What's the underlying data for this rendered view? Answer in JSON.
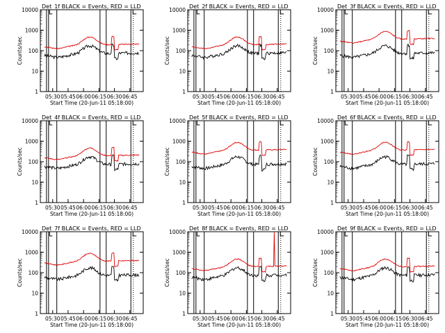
{
  "figure": {
    "ylabel": "Counts/sec",
    "xlabel": "Start Time (20-Jun-11 05:18:00)"
  },
  "axes": {
    "y_ticks": [
      {
        "v": 1,
        "label": "1"
      },
      {
        "v": 10,
        "label": "10"
      },
      {
        "v": 100,
        "label": "100"
      },
      {
        "v": 1000,
        "label": "1000"
      },
      {
        "v": 10000,
        "label": "10000"
      }
    ],
    "x_ticks": [
      "05:30",
      "05:45",
      "06:00",
      "06:15",
      "06:30",
      "06:45"
    ]
  },
  "colors": {
    "events": "#000000",
    "lld": "#e00000"
  },
  "chart_data": [
    {
      "type": "line",
      "title": "Det_1f BLACK = Events, RED = LLD",
      "x_range": [
        "05:18",
        "06:58"
      ],
      "ylim": [
        1,
        10000
      ],
      "y_scale": "log",
      "events_level": "low",
      "lld_level": "mid",
      "red_spike": false,
      "series": [
        {
          "values": []
        },
        {
          "values": []
        }
      ]
    },
    {
      "type": "line",
      "title": "Det_2f BLACK = Events, RED = LLD",
      "x_range": [
        "05:18",
        "06:58"
      ],
      "ylim": [
        1,
        10000
      ],
      "y_scale": "log",
      "events_level": "low",
      "lld_level": "mid",
      "red_spike": false,
      "series": [
        {
          "values": []
        },
        {
          "values": []
        }
      ]
    },
    {
      "type": "line",
      "title": "Det_3f BLACK = Events, RED = LLD",
      "x_range": [
        "05:18",
        "06:58"
      ],
      "ylim": [
        1,
        10000
      ],
      "y_scale": "log",
      "events_level": "low",
      "lld_level": "high",
      "red_spike": false,
      "series": [
        {
          "values": []
        },
        {
          "values": []
        }
      ]
    },
    {
      "type": "line",
      "title": "Det_4f BLACK = Events, RED = LLD",
      "x_range": [
        "05:18",
        "06:58"
      ],
      "ylim": [
        1,
        10000
      ],
      "y_scale": "log",
      "events_level": "low",
      "lld_level": "mid",
      "red_spike": false,
      "series": [
        {
          "values": []
        },
        {
          "values": []
        }
      ]
    },
    {
      "type": "line",
      "title": "Det_5f BLACK = Events, RED = LLD",
      "x_range": [
        "05:18",
        "06:58"
      ],
      "ylim": [
        1,
        10000
      ],
      "y_scale": "log",
      "events_level": "low",
      "lld_level": "high",
      "red_spike": false,
      "series": [
        {
          "values": []
        },
        {
          "values": []
        }
      ]
    },
    {
      "type": "line",
      "title": "Det_6f BLACK = Events, RED = LLD",
      "x_range": [
        "05:18",
        "06:58"
      ],
      "ylim": [
        1,
        10000
      ],
      "y_scale": "log",
      "events_level": "low",
      "lld_level": "high",
      "red_spike": false,
      "series": [
        {
          "values": []
        },
        {
          "values": []
        }
      ]
    },
    {
      "type": "line",
      "title": "Det_7f BLACK = Events, RED = LLD",
      "x_range": [
        "05:18",
        "06:58"
      ],
      "ylim": [
        1,
        10000
      ],
      "y_scale": "log",
      "events_level": "low",
      "lld_level": "high",
      "red_spike": false,
      "series": [
        {
          "values": []
        },
        {
          "values": []
        }
      ]
    },
    {
      "type": "line",
      "title": "Det_8f BLACK = Events, RED = LLD",
      "x_range": [
        "05:18",
        "06:58"
      ],
      "ylim": [
        1,
        10000
      ],
      "y_scale": "log",
      "events_level": "low",
      "lld_level": "mid",
      "red_spike": true,
      "series": [
        {
          "values": []
        },
        {
          "values": []
        }
      ]
    },
    {
      "type": "line",
      "title": "Det_9f BLACK = Events, RED = LLD",
      "x_range": [
        "05:18",
        "06:58"
      ],
      "ylim": [
        1,
        10000
      ],
      "y_scale": "log",
      "events_level": "low",
      "lld_level": "mid",
      "red_spike": false,
      "series": [
        {
          "values": []
        },
        {
          "values": []
        }
      ]
    }
  ]
}
